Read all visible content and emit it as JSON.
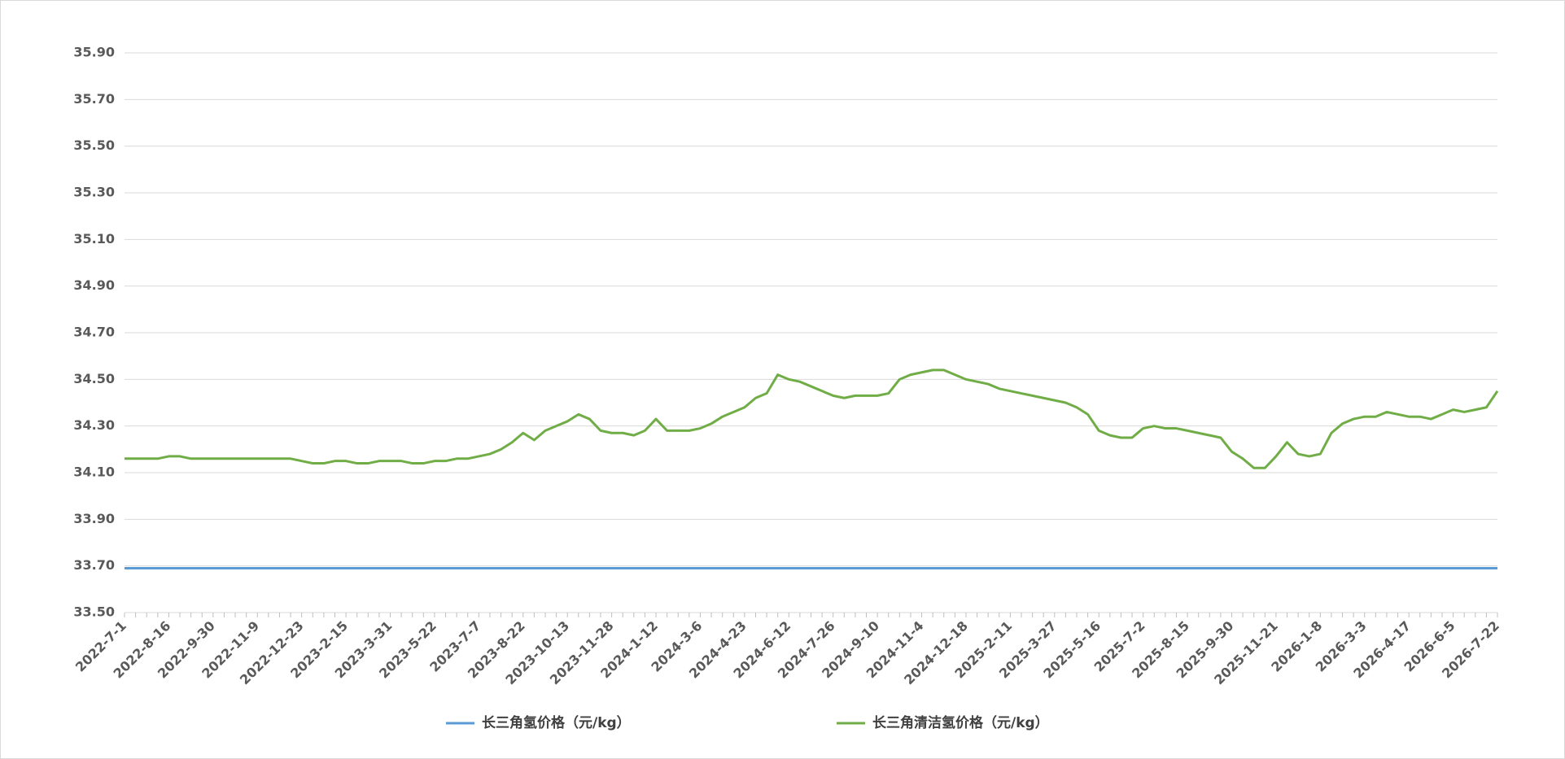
{
  "chart_data": {
    "type": "line",
    "categories": [
      "2022-7-1",
      null,
      null,
      null,
      "2022-8-16",
      null,
      null,
      null,
      "2022-9-30",
      null,
      null,
      null,
      "2022-11-9",
      null,
      null,
      null,
      "2022-12-23",
      null,
      null,
      null,
      "2023-2-15",
      null,
      null,
      null,
      "2023-3-31",
      null,
      null,
      null,
      "2023-5-22",
      null,
      null,
      null,
      "2023-7-7",
      null,
      null,
      null,
      "2023-8-22",
      null,
      null,
      null,
      "2023-10-13",
      null,
      null,
      null,
      "2023-11-28",
      null,
      null,
      null,
      "2024-1-12",
      null,
      null,
      null,
      "2024-3-6",
      null,
      null,
      null,
      "2024-4-23",
      null,
      null,
      null,
      "2024-6-12",
      null,
      null,
      null,
      "2024-7-26",
      null,
      null,
      null,
      "2024-9-10",
      null,
      null,
      null,
      "2024-11-4",
      null,
      null,
      null,
      "2024-12-18",
      null,
      null,
      null,
      "2025-2-11",
      null,
      null,
      null,
      "2025-3-27",
      null,
      null,
      null,
      "2025-5-16",
      null,
      null,
      null,
      "2025-7-2",
      null,
      null,
      null,
      "2025-8-15",
      null,
      null,
      null,
      "2025-9-30",
      null,
      null,
      null,
      "2025-11-21",
      null,
      null,
      null,
      "2026-1-8",
      null,
      null,
      null,
      "2026-3-3",
      null,
      null,
      null,
      "2026-4-17",
      null,
      null,
      null,
      "2026-6-5",
      null,
      null,
      null,
      "2026-7-22"
    ],
    "series": [
      {
        "name": "长三角氢价格（元/kg）",
        "color": "#5b9bd5",
        "values": [
          33.69,
          33.69,
          33.69,
          33.69,
          33.69,
          33.69,
          33.69,
          33.69,
          33.69,
          33.69,
          33.69,
          33.69,
          33.69,
          33.69,
          33.69,
          33.69,
          33.69,
          33.69,
          33.69,
          33.69,
          33.69,
          33.69,
          33.69,
          33.69,
          33.69,
          33.69,
          33.69,
          33.69,
          33.69,
          33.69,
          33.69,
          33.69,
          33.69,
          33.69,
          33.69,
          33.69,
          33.69,
          33.69,
          33.69,
          33.69,
          33.69,
          33.69,
          33.69,
          33.69,
          33.69,
          33.69,
          33.69,
          33.69,
          33.69,
          33.69,
          33.69,
          33.69,
          33.69,
          33.69,
          33.69,
          33.69,
          33.69,
          33.69,
          33.69,
          33.69,
          33.69,
          33.69,
          33.69,
          33.69,
          33.69,
          33.69,
          33.69,
          33.69,
          33.69,
          33.69,
          33.69,
          33.69,
          33.69,
          33.69,
          33.69,
          33.69,
          33.69,
          33.69,
          33.69,
          33.69,
          33.69,
          33.69,
          33.69,
          33.69,
          33.69,
          33.69,
          33.69,
          33.69,
          33.69,
          33.69,
          33.69,
          33.69,
          33.69,
          33.69,
          33.69,
          33.69,
          33.69,
          33.69,
          33.69,
          33.69,
          33.69,
          33.69,
          33.69,
          33.69,
          33.69,
          33.69,
          33.69,
          33.69,
          33.69,
          33.69,
          33.69,
          33.69,
          33.69,
          33.69,
          33.69,
          33.69,
          33.69,
          33.69,
          33.69,
          33.69,
          33.69,
          33.69,
          33.69,
          33.69,
          33.69
        ]
      },
      {
        "name": "长三角清洁氢价格（元/kg）",
        "color": "#70ad47",
        "values": [
          34.16,
          34.16,
          34.16,
          34.16,
          34.17,
          34.17,
          34.16,
          34.16,
          34.16,
          34.16,
          34.16,
          34.16,
          34.16,
          34.16,
          34.16,
          34.16,
          34.15,
          34.14,
          34.14,
          34.15,
          34.15,
          34.14,
          34.14,
          34.15,
          34.15,
          34.15,
          34.14,
          34.14,
          34.15,
          34.15,
          34.16,
          34.16,
          34.17,
          34.18,
          34.2,
          34.23,
          34.27,
          34.24,
          34.28,
          34.3,
          34.32,
          34.35,
          34.33,
          34.28,
          34.27,
          34.27,
          34.26,
          34.28,
          34.33,
          34.28,
          34.28,
          34.28,
          34.29,
          34.31,
          34.34,
          34.36,
          34.38,
          34.42,
          34.44,
          34.52,
          34.5,
          34.49,
          34.47,
          34.45,
          34.43,
          34.42,
          34.43,
          34.43,
          34.43,
          34.44,
          34.5,
          34.52,
          34.53,
          34.54,
          34.54,
          34.52,
          34.5,
          34.49,
          34.48,
          34.46,
          34.45,
          34.44,
          34.43,
          34.42,
          34.41,
          34.4,
          34.38,
          34.35,
          34.28,
          34.26,
          34.25,
          34.25,
          34.29,
          34.3,
          34.29,
          34.29,
          34.28,
          34.27,
          34.26,
          34.25,
          34.19,
          34.16,
          34.12,
          34.12,
          34.17,
          34.23,
          34.18,
          34.17,
          34.18,
          34.27,
          34.31,
          34.33,
          34.34,
          34.34,
          34.36,
          34.35,
          34.34,
          34.34,
          34.33,
          34.35,
          34.37,
          34.36,
          34.37,
          34.38,
          34.45
        ]
      }
    ],
    "ylim": [
      33.5,
      35.9
    ],
    "yticks": [
      {
        "value": 33.5,
        "label": "33.50"
      },
      {
        "value": 33.7,
        "label": "33.70"
      },
      {
        "value": 33.9,
        "label": "33.90"
      },
      {
        "value": 34.1,
        "label": "34.10"
      },
      {
        "value": 34.3,
        "label": "34.30"
      },
      {
        "value": 34.5,
        "label": "34.50"
      },
      {
        "value": 34.7,
        "label": "34.70"
      },
      {
        "value": 34.9,
        "label": "34.90"
      },
      {
        "value": 35.1,
        "label": "35.10"
      },
      {
        "value": 35.3,
        "label": "35.30"
      },
      {
        "value": 35.5,
        "label": "35.50"
      },
      {
        "value": 35.7,
        "label": "35.70"
      },
      {
        "value": 35.9,
        "label": "35.90"
      }
    ],
    "grid": true,
    "legend": "bottom"
  }
}
